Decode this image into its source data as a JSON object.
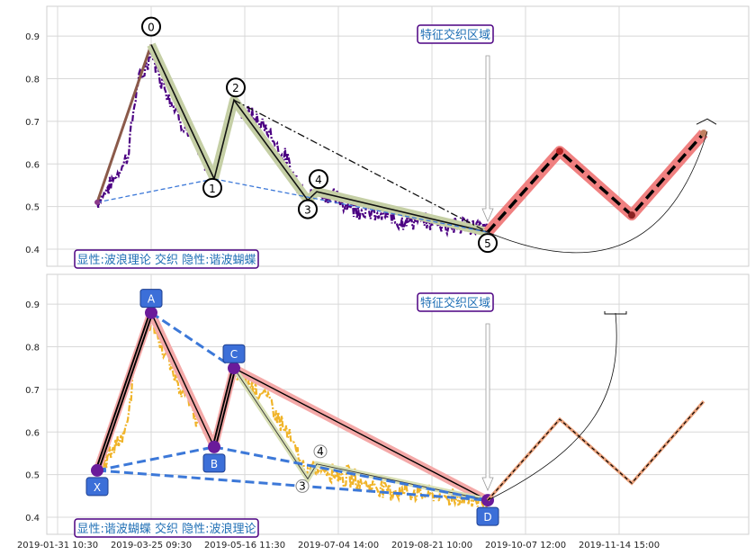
{
  "chart_data": [
    {
      "type": "line",
      "panel": "top",
      "ylim": [
        0.36,
        0.97
      ],
      "yticks": [
        0.4,
        0.5,
        0.6,
        0.7,
        0.8,
        0.9
      ],
      "grid": true,
      "annotations": {
        "region_label": "特征交织区域",
        "legend_text": "显性:波浪理论 交织 隐性:谐波蝴蝶"
      },
      "wave_points": [
        {
          "label": "0",
          "t": 35,
          "y": 0.88
        },
        {
          "label": "1",
          "t": 70,
          "y": 0.565
        },
        {
          "label": "2",
          "t": 81,
          "y": 0.75
        },
        {
          "label": "3",
          "t": 122,
          "y": 0.515
        },
        {
          "label": "4",
          "t": 127,
          "y": 0.535
        },
        {
          "label": "5",
          "t": 222,
          "y": 0.44
        }
      ],
      "wave_start": {
        "t": 5,
        "y": 0.51
      },
      "projection": [
        {
          "t": 222,
          "y": 0.44
        },
        {
          "t": 262,
          "y": 0.63
        },
        {
          "t": 302,
          "y": 0.48
        },
        {
          "t": 342,
          "y": 0.672
        }
      ]
    },
    {
      "type": "line",
      "panel": "bottom",
      "ylim": [
        0.36,
        0.97
      ],
      "yticks": [
        0.4,
        0.5,
        0.6,
        0.7,
        0.8,
        0.9
      ],
      "grid": true,
      "annotations": {
        "region_label": "特征交织区域",
        "legend_text": "显性:谐波蝴蝶 交织 隐性:波浪理论"
      },
      "harmonic_points": [
        {
          "label": "X",
          "t": 5,
          "y": 0.51
        },
        {
          "label": "A",
          "t": 35,
          "y": 0.88
        },
        {
          "label": "B",
          "t": 70,
          "y": 0.565
        },
        {
          "label": "C",
          "t": 81,
          "y": 0.75
        },
        {
          "label": "D",
          "t": 222,
          "y": 0.44
        }
      ],
      "small_points": [
        {
          "label": "3",
          "t": 122,
          "y": 0.49
        },
        {
          "label": "4",
          "t": 127,
          "y": 0.525
        }
      ],
      "projection": [
        {
          "t": 222,
          "y": 0.44
        },
        {
          "t": 262,
          "y": 0.63
        },
        {
          "t": 302,
          "y": 0.48
        },
        {
          "t": 342,
          "y": 0.672
        }
      ]
    }
  ],
  "x_axis": {
    "tick_labels": [
      "2019-01-31 10:30",
      "2019-03-25 09:30",
      "2019-05-16 11:30",
      "2019-07-04 14:00",
      "2019-08-21 10:00",
      "2019-10-07 12:00",
      "2019-11-14 15:00"
    ],
    "tick_t": [
      -17,
      35,
      87,
      139,
      191,
      243,
      295
    ]
  },
  "colors": {
    "price_top": "#4b0082",
    "price_bottom": "#f0b429",
    "wave_band": "#c5cfa5",
    "projection_band": "#f08080",
    "box_fill": "#3c6fd8",
    "dashed_blue": "#3c78d8",
    "label_border": "#4b0082"
  }
}
